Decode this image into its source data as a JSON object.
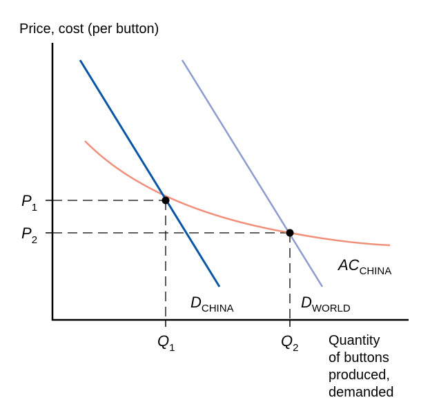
{
  "chart_data": {
    "type": "line",
    "title": "",
    "ylabel": "Price, cost (per button)",
    "xlabel_lines": [
      "Quantity",
      "of buttons",
      "produced,",
      "demanded"
    ],
    "colors": {
      "d_china": "#0a55a6",
      "d_world": "#8c9bd0",
      "ac_china": "#f0907a",
      "axis": "#000000"
    },
    "curves": [
      {
        "id": "d_china",
        "label_main": "D",
        "label_sub": "CHINA"
      },
      {
        "id": "d_world",
        "label_main": "D",
        "label_sub": "WORLD"
      },
      {
        "id": "ac_china",
        "label_main": "AC",
        "label_sub": "CHINA"
      }
    ],
    "points": [
      {
        "id": "p1q1",
        "x_label_main": "Q",
        "x_label_sub": "1",
        "y_label_main": "P",
        "y_label_sub": "1"
      },
      {
        "id": "p2q2",
        "x_label_main": "Q",
        "x_label_sub": "2",
        "y_label_main": "P",
        "y_label_sub": "2"
      }
    ],
    "grid": false
  }
}
